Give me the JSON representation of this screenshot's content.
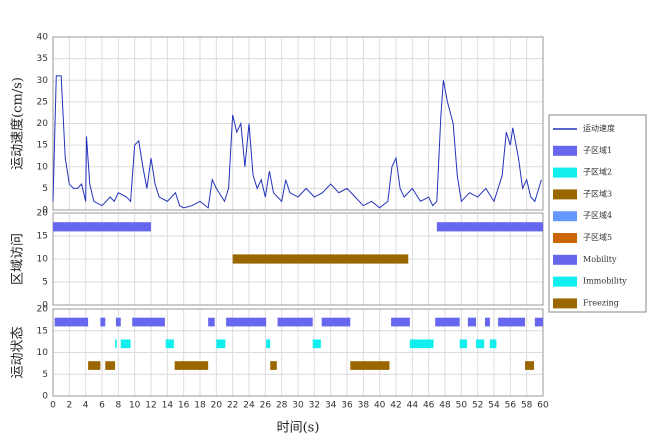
{
  "chart_data": [
    {
      "type": "line",
      "ylabel": "运动速度(cm/s)",
      "ylim": [
        0,
        40
      ],
      "yticks": [
        0,
        5,
        10,
        15,
        20,
        25,
        30,
        35,
        40
      ],
      "series": [
        {
          "name": "运动速度",
          "color": "#2233bb",
          "x": [
            0,
            0.4,
            1,
            1.5,
            2,
            2.5,
            3,
            3.5,
            4,
            4.1,
            4.5,
            5,
            6,
            7,
            7.5,
            8,
            9,
            9.5,
            10,
            10.5,
            11,
            11.5,
            12,
            12.5,
            13,
            14,
            15,
            15.5,
            16,
            17,
            18,
            19,
            19.5,
            20,
            21,
            21.5,
            22,
            22.5,
            23,
            23.5,
            24,
            24.5,
            25,
            25.5,
            26,
            26.5,
            27,
            28,
            28.5,
            29,
            30,
            31,
            32,
            33,
            34,
            35,
            36,
            37,
            38,
            39,
            40,
            41,
            41.5,
            42,
            42.5,
            43,
            44,
            45,
            46,
            46.5,
            47,
            47.5,
            47.8,
            48.3,
            49,
            49.5,
            50,
            51,
            52,
            53,
            54,
            55,
            55.5,
            56,
            56.3,
            57,
            57.5,
            58,
            58.5,
            59,
            59.8
          ],
          "values": [
            2,
            31,
            31,
            12,
            6,
            5,
            5,
            6,
            2,
            17,
            6,
            2,
            1,
            3,
            2,
            4,
            3,
            2,
            15,
            16,
            10,
            5,
            12,
            6,
            3,
            2,
            4,
            1,
            0.5,
            1,
            2,
            0.5,
            7,
            5,
            2,
            5,
            22,
            18,
            20,
            10,
            20,
            8,
            5,
            7,
            3,
            9,
            4,
            2,
            7,
            4,
            3,
            5,
            3,
            4,
            6,
            4,
            5,
            3,
            1,
            2,
            0.5,
            2,
            10,
            12,
            5,
            3,
            5,
            2,
            3,
            1,
            2,
            22,
            30,
            25,
            20,
            8,
            2,
            4,
            3,
            5,
            2,
            8,
            18,
            15,
            19,
            12,
            5,
            7,
            3,
            2,
            7
          ]
        }
      ]
    },
    {
      "type": "timeline",
      "ylabel": "区域访问",
      "ylim": [
        0,
        20
      ],
      "yticks": [
        0,
        5,
        10,
        15,
        20
      ],
      "series": [
        {
          "name": "子区域1",
          "color": "#6666ee",
          "level": 17,
          "segments": [
            [
              0,
              12
            ],
            [
              47,
              60
            ]
          ]
        },
        {
          "name": "子区域2",
          "color": "#11eeee",
          "level": 17,
          "segments": []
        },
        {
          "name": "子区域3",
          "color": "#996600",
          "level": 10,
          "segments": [
            [
              22,
              43.5
            ]
          ]
        },
        {
          "name": "子区域4",
          "color": "#6699ff",
          "level": 10,
          "segments": []
        },
        {
          "name": "子区域5",
          "color": "#cc6600",
          "level": 10,
          "segments": []
        }
      ]
    },
    {
      "type": "timeline",
      "ylabel": "运动状态",
      "xlabel": "时间(s)",
      "ylim": [
        0,
        20
      ],
      "yticks": [
        0,
        5,
        10,
        15,
        20
      ],
      "xlim": [
        0,
        60
      ],
      "xticks": [
        0,
        2,
        4,
        6,
        8,
        10,
        12,
        14,
        16,
        18,
        20,
        22,
        24,
        26,
        28,
        30,
        32,
        34,
        36,
        38,
        40,
        42,
        44,
        46,
        48,
        50,
        52,
        54,
        56,
        58,
        60
      ],
      "series": [
        {
          "name": "Mobility",
          "color": "#6666ee",
          "level": 17,
          "segments": [
            [
              0.2,
              4.3
            ],
            [
              5.8,
              6.4
            ],
            [
              7.7,
              8.3
            ],
            [
              9.7,
              13.7
            ],
            [
              19,
              19.8
            ],
            [
              21.2,
              26.1
            ],
            [
              27.5,
              31.8
            ],
            [
              32.9,
              36.4
            ],
            [
              41.4,
              43.7
            ],
            [
              46.8,
              49.8
            ],
            [
              50.8,
              51.8
            ],
            [
              52.9,
              53.5
            ],
            [
              54.5,
              57.8
            ],
            [
              59,
              60
            ]
          ]
        },
        {
          "name": "Immobility",
          "color": "#11eeee",
          "level": 12,
          "segments": [
            [
              7.6,
              7.8
            ],
            [
              8.3,
              9.5
            ],
            [
              13.8,
              14.8
            ],
            [
              20,
              21.1
            ],
            [
              26.1,
              26.6
            ],
            [
              31.8,
              32.8
            ],
            [
              43.7,
              46.6
            ],
            [
              49.8,
              50.7
            ],
            [
              51.8,
              52.8
            ],
            [
              53.5,
              54.3
            ]
          ]
        },
        {
          "name": "Freezing",
          "color": "#996600",
          "level": 7,
          "segments": [
            [
              4.3,
              5.8
            ],
            [
              6.4,
              7.6
            ],
            [
              14.9,
              19
            ],
            [
              26.6,
              27.4
            ],
            [
              36.4,
              41.2
            ],
            [
              57.8,
              58.9
            ]
          ]
        }
      ]
    }
  ]
}
